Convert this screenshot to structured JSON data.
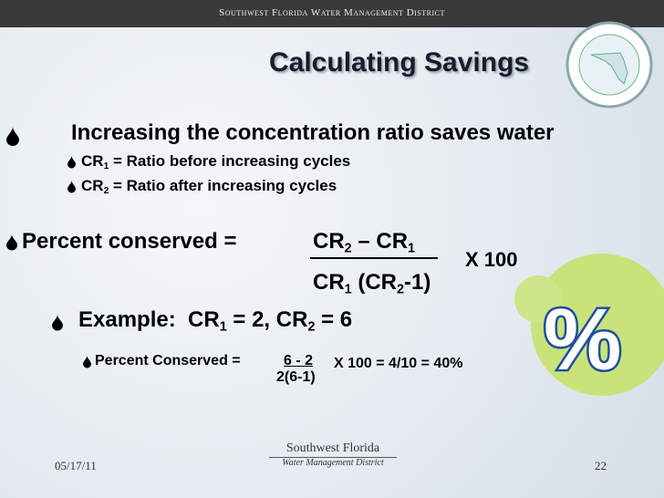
{
  "header": {
    "org": "Southwest Florida Water Management District"
  },
  "title": "Calculating Savings",
  "bullets": {
    "main": "Increasing the concentration ratio saves water",
    "sub1": [
      "CR",
      "1",
      " = Ratio before increasing cycles"
    ],
    "sub2": [
      "CR",
      "2",
      " = Ratio after increasing cycles"
    ]
  },
  "formula": {
    "label": "Percent conserved = ",
    "numerator": [
      "CR",
      "2",
      " – CR",
      "1"
    ],
    "denominator": [
      "CR",
      "1",
      " (CR",
      "2",
      "-1)"
    ],
    "multiplier": "X 100"
  },
  "example": [
    "Example:  CR",
    "1",
    " = 2, CR",
    "2",
    " = 6"
  ],
  "example_calc": {
    "label": "Percent Conserved = ",
    "numerator": "6 - 2",
    "denominator": "2(6-1)",
    "result": "X 100 = 4/10 = 40%"
  },
  "icon": "%",
  "footer": {
    "date": "05/17/11",
    "logo_line1": "Southwest Florida",
    "logo_line2": "Water Management District",
    "page": "22"
  }
}
